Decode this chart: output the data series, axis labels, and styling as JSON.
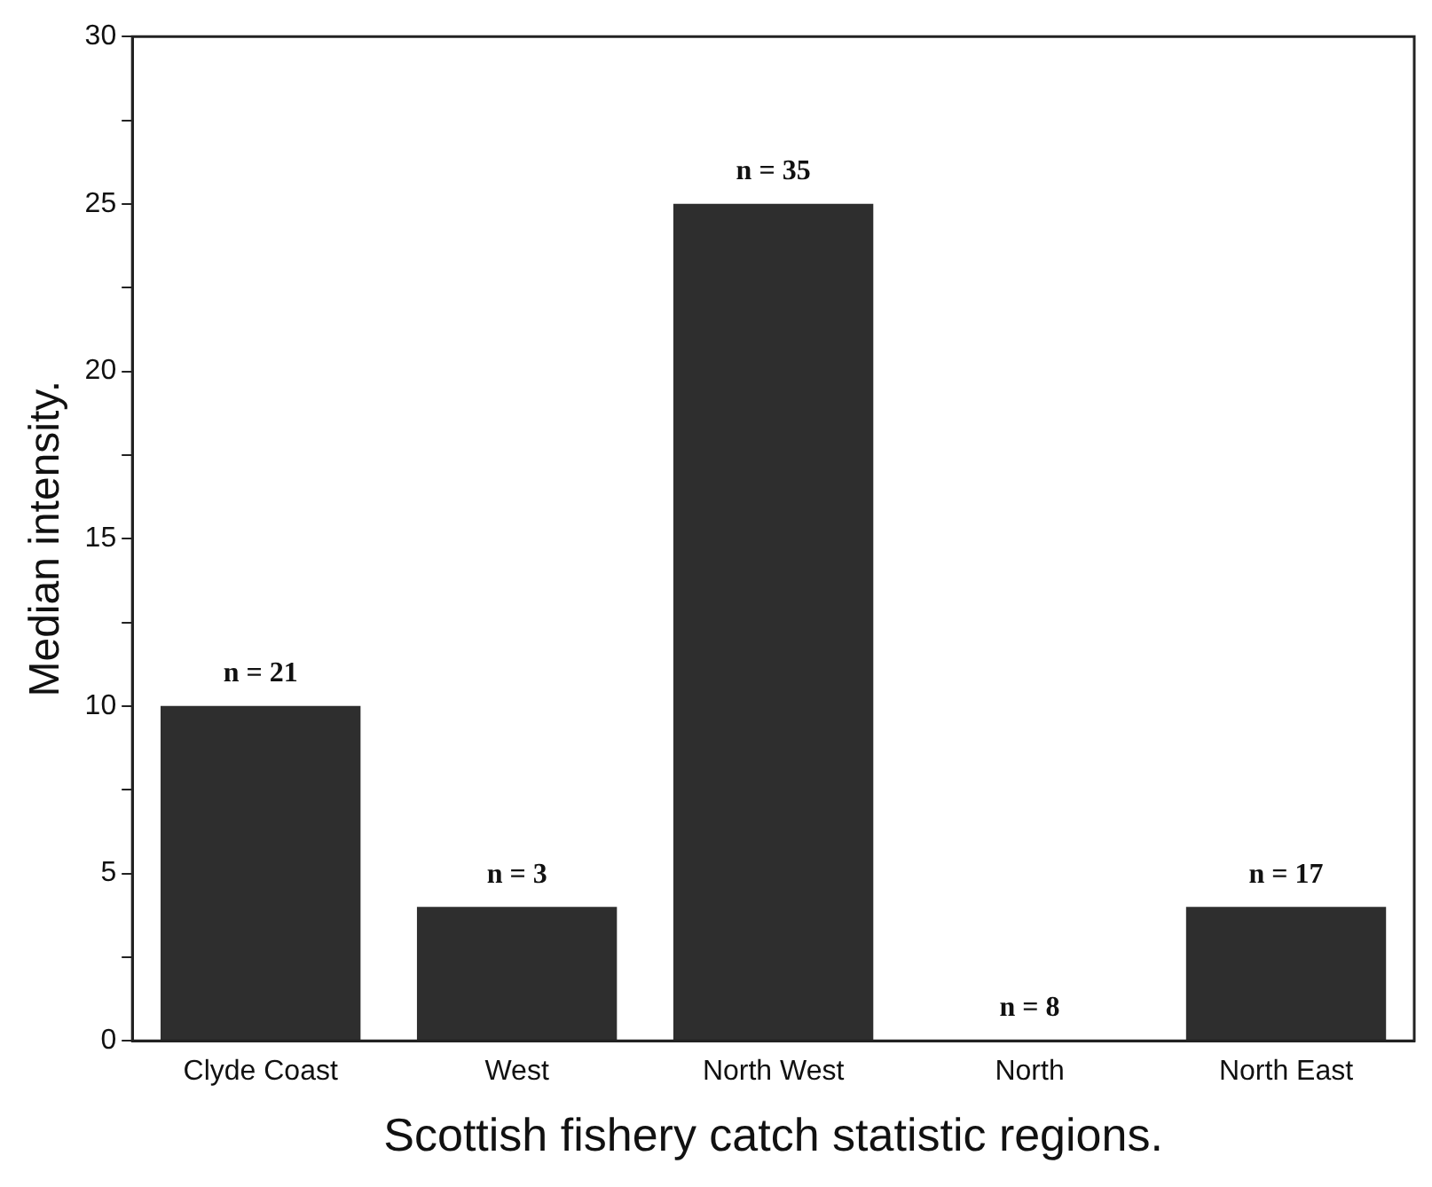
{
  "chart_data": {
    "type": "bar",
    "xlabel": "Scottish fishery catch statistic regions.",
    "ylabel": "Median intensity.",
    "categories": [
      "Clyde Coast",
      "West",
      "North West",
      "North",
      "North East"
    ],
    "values": [
      10,
      4,
      25,
      0,
      4
    ],
    "annotations": [
      {
        "text": "n = 21",
        "x": "Clyde Coast",
        "y": 10
      },
      {
        "text": "n = 3",
        "x": "West",
        "y": 4
      },
      {
        "text": "n = 35",
        "x": "North West",
        "y": 25
      },
      {
        "text": "n = 8",
        "x": "North",
        "y": 0
      },
      {
        "text": "n = 17",
        "x": "North East",
        "y": 4
      }
    ],
    "color": "#2e2e2e",
    "ylim": [
      0,
      30
    ],
    "yticks": [
      0,
      {
        "value": 2.5,
        "label": null
      },
      5,
      {
        "value": 7.5,
        "label": null
      },
      10,
      {
        "value": 12.5,
        "label": null
      },
      15,
      {
        "value": 17.5,
        "label": null
      },
      20,
      {
        "value": 22.5,
        "label": null
      },
      25,
      {
        "value": 27.5,
        "label": null
      },
      30
    ],
    "grid": false,
    "legend": false
  }
}
